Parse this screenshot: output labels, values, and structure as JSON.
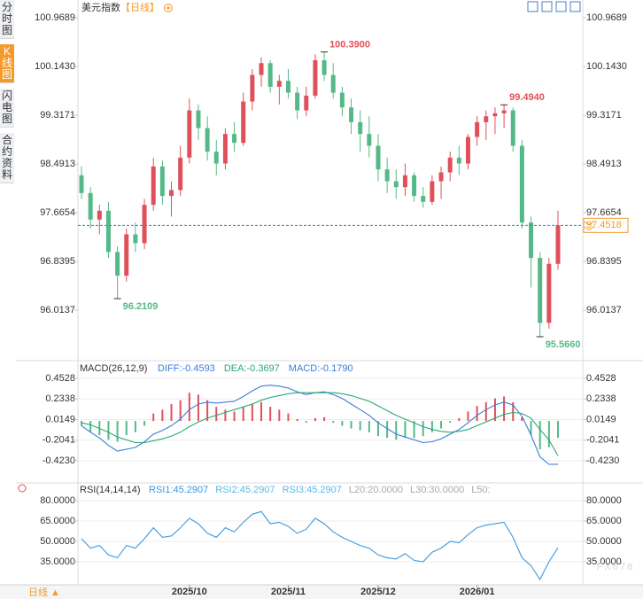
{
  "header": {
    "title": "美元指数",
    "period": "【日线】"
  },
  "sidebar": [
    "分时图",
    "K线图",
    "闪电图",
    "合约资料"
  ],
  "footer": {
    "period": "日线 ▲"
  },
  "watermark": "FX678",
  "chart_data": [
    {
      "type": "candlestick",
      "up_color": "#e0505b",
      "down_color": "#55b987",
      "open": [
        98.3,
        98.0,
        97.55,
        97.7,
        97.0,
        96.6,
        97.3,
        97.15,
        97.8,
        98.45,
        97.95,
        98.05,
        98.6,
        99.4,
        99.1,
        98.7,
        98.5,
        99.0,
        98.85,
        99.55,
        100.0,
        100.2,
        99.8,
        99.9,
        99.7,
        99.4,
        99.65,
        100.25,
        100.0,
        99.7,
        99.45,
        99.2,
        99.0,
        98.8,
        98.4,
        98.2,
        98.1,
        98.3,
        97.95,
        97.85,
        98.2,
        98.35,
        98.6,
        98.5,
        98.95,
        99.2,
        99.3,
        99.35,
        99.4,
        98.8,
        97.5,
        96.9,
        95.8,
        96.8
      ],
      "high": [
        98.45,
        98.1,
        97.8,
        97.85,
        97.1,
        97.4,
        97.5,
        97.9,
        98.6,
        98.55,
        98.2,
        98.8,
        99.6,
        99.5,
        99.3,
        98.9,
        99.1,
        99.2,
        99.7,
        100.1,
        100.3,
        100.25,
        100.0,
        100.1,
        99.8,
        99.8,
        100.35,
        100.39,
        100.2,
        99.8,
        99.6,
        99.4,
        99.3,
        99.0,
        98.6,
        98.4,
        98.5,
        98.35,
        98.1,
        98.3,
        98.45,
        98.7,
        98.8,
        99.0,
        99.3,
        99.4,
        99.45,
        99.494,
        99.45,
        98.9,
        97.6,
        97.0,
        96.9,
        97.7
      ],
      "low": [
        97.9,
        97.4,
        97.3,
        96.9,
        96.2109,
        96.5,
        97.0,
        97.05,
        97.7,
        97.8,
        97.6,
        97.95,
        98.5,
        98.9,
        98.55,
        98.3,
        98.4,
        98.7,
        98.8,
        99.4,
        99.8,
        99.7,
        99.5,
        99.6,
        99.25,
        99.3,
        99.6,
        99.9,
        99.6,
        99.3,
        99.0,
        98.7,
        98.6,
        98.2,
        98.0,
        97.9,
        97.95,
        97.85,
        97.75,
        97.8,
        97.9,
        98.2,
        98.3,
        98.4,
        98.8,
        98.9,
        99.0,
        99.1,
        98.7,
        97.4,
        96.4,
        95.566,
        95.7,
        96.7
      ],
      "close": [
        98.0,
        97.55,
        97.7,
        97.0,
        96.6,
        97.3,
        97.15,
        97.8,
        98.45,
        97.95,
        98.05,
        98.6,
        99.4,
        99.1,
        98.7,
        98.5,
        99.0,
        98.85,
        99.55,
        100.0,
        100.2,
        99.8,
        99.9,
        99.7,
        99.4,
        99.65,
        100.25,
        100.0,
        99.7,
        99.45,
        99.2,
        99.0,
        98.8,
        98.4,
        98.2,
        98.1,
        98.3,
        97.95,
        97.85,
        98.2,
        98.35,
        98.6,
        98.5,
        98.95,
        99.2,
        99.3,
        99.35,
        99.4,
        98.8,
        97.5,
        96.9,
        95.8,
        96.8,
        97.4518
      ],
      "xlim": [
        0,
        53
      ],
      "xticks": [
        {
          "value": 12,
          "label": "2025/10"
        },
        {
          "value": 23,
          "label": "2025/11"
        },
        {
          "value": 33,
          "label": "2025/12"
        },
        {
          "value": 44,
          "label": "2026/01"
        }
      ],
      "ylim": [
        95.19,
        101.12
      ],
      "yticks": [
        {
          "value": 100.9689,
          "label": "100.9689"
        },
        {
          "value": 100.143,
          "label": "100.1430"
        },
        {
          "value": 99.3171,
          "label": "99.3171"
        },
        {
          "value": 98.4913,
          "label": "98.4913"
        },
        {
          "value": 97.6654,
          "label": "97.6654"
        },
        {
          "value": 96.8395,
          "label": "96.8395"
        },
        {
          "value": 96.0137,
          "label": "96.0137"
        }
      ],
      "annotations": [
        {
          "value": 100.39,
          "label": "100.3900"
        },
        {
          "value": 99.494,
          "label": "99.4940"
        },
        {
          "value": 96.2109,
          "label": "96.2109"
        },
        {
          "value": 95.566,
          "label": "95.5660"
        }
      ],
      "last": {
        "value": 97.4518,
        "label": "97.4518",
        "color": "#f39a2b"
      }
    },
    {
      "type": "macd",
      "name": "MACD(26,12,9)",
      "legend": [
        "DIFF:-0.4593",
        "DEA:-0.3697",
        "MACD:-0.1790"
      ],
      "legend_colors": [
        "#3b7dd8",
        "#2aa876",
        "#3b7dd8"
      ],
      "up_color": "#e0505b",
      "down_color": "#55b987",
      "histogram": [
        -0.05,
        -0.12,
        -0.15,
        -0.2,
        -0.22,
        -0.15,
        -0.12,
        -0.05,
        0.08,
        0.12,
        0.18,
        0.22,
        0.3,
        0.28,
        0.22,
        0.15,
        0.12,
        0.1,
        0.15,
        0.18,
        0.2,
        0.15,
        0.12,
        0.08,
        0.02,
        -0.02,
        0.03,
        0.04,
        -0.02,
        -0.05,
        -0.08,
        -0.1,
        -0.12,
        -0.16,
        -0.18,
        -0.2,
        -0.18,
        -0.18,
        -0.16,
        -0.12,
        -0.08,
        -0.02,
        0.03,
        0.1,
        0.16,
        0.2,
        0.24,
        0.26,
        0.2,
        0.04,
        -0.15,
        -0.3,
        -0.28,
        -0.179
      ],
      "series": [
        {
          "name": "DIFF",
          "color": "#3b7dd8",
          "values": [
            -0.05,
            -0.12,
            -0.18,
            -0.26,
            -0.32,
            -0.3,
            -0.28,
            -0.22,
            -0.14,
            -0.1,
            -0.05,
            0.02,
            0.12,
            0.18,
            0.2,
            0.19,
            0.2,
            0.21,
            0.26,
            0.32,
            0.37,
            0.38,
            0.37,
            0.35,
            0.31,
            0.28,
            0.3,
            0.31,
            0.28,
            0.24,
            0.18,
            0.12,
            0.06,
            -0.02,
            -0.08,
            -0.14,
            -0.17,
            -0.2,
            -0.23,
            -0.22,
            -0.19,
            -0.14,
            -0.09,
            -0.02,
            0.06,
            0.12,
            0.17,
            0.2,
            0.17,
            0.05,
            -0.15,
            -0.38,
            -0.46,
            -0.4593
          ]
        },
        {
          "name": "DEA",
          "color": "#2aa876",
          "values": [
            -0.02,
            -0.04,
            -0.08,
            -0.12,
            -0.17,
            -0.2,
            -0.23,
            -0.23,
            -0.21,
            -0.19,
            -0.16,
            -0.12,
            -0.06,
            -0.01,
            0.03,
            0.06,
            0.09,
            0.12,
            0.15,
            0.18,
            0.22,
            0.25,
            0.27,
            0.29,
            0.3,
            0.3,
            0.3,
            0.3,
            0.3,
            0.29,
            0.27,
            0.24,
            0.21,
            0.16,
            0.11,
            0.06,
            0.02,
            -0.02,
            -0.06,
            -0.09,
            -0.11,
            -0.12,
            -0.11,
            -0.09,
            -0.05,
            -0.01,
            0.03,
            0.07,
            0.09,
            0.08,
            0.03,
            -0.09,
            -0.2,
            -0.3697
          ]
        }
      ],
      "ylim": [
        -0.639,
        0.6126
      ],
      "yticks": [
        {
          "value": 0.4528,
          "label": "0.4528"
        },
        {
          "value": 0.2338,
          "label": "0.2338"
        },
        {
          "value": 0.0149,
          "label": "0.0149"
        },
        {
          "value": -0.2041,
          "label": "-0.2041"
        },
        {
          "value": -0.423,
          "label": "-0.4230"
        }
      ]
    },
    {
      "type": "rsi",
      "name": "RSI(14,14,14)",
      "legend": [
        "RSI1:45.2907",
        "RSI2:45.2907",
        "RSI3:45.2907",
        "L20:20.0000",
        "L30:30.0000",
        "L50:"
      ],
      "legend_colors": [
        "#3b9ae1",
        "#5cb8e8",
        "#5cb8e8",
        "#aaaaaa",
        "#aaaaaa",
        "#aaaaaa"
      ],
      "series": [
        {
          "name": "RSI1",
          "color": "#3b9ae1",
          "values": [
            52,
            45,
            47,
            40,
            38,
            47,
            45,
            52,
            60,
            53,
            54,
            60,
            67,
            63,
            56,
            53,
            60,
            57,
            64,
            70,
            72,
            63,
            64,
            61,
            56,
            59,
            67,
            63,
            57,
            53,
            50,
            47,
            45,
            40,
            38,
            37,
            41,
            36,
            35,
            42,
            45,
            50,
            49,
            55,
            60,
            62,
            63,
            64,
            53,
            38,
            32,
            22,
            35,
            45.2907
          ]
        }
      ],
      "ylim": [
        18,
        91.1
      ],
      "yticks": [
        {
          "value": 80,
          "label": "80.0000"
        },
        {
          "value": 65,
          "label": "65.0000"
        },
        {
          "value": 50,
          "label": "50.0000"
        },
        {
          "value": 35,
          "label": "35.0000"
        }
      ]
    }
  ]
}
